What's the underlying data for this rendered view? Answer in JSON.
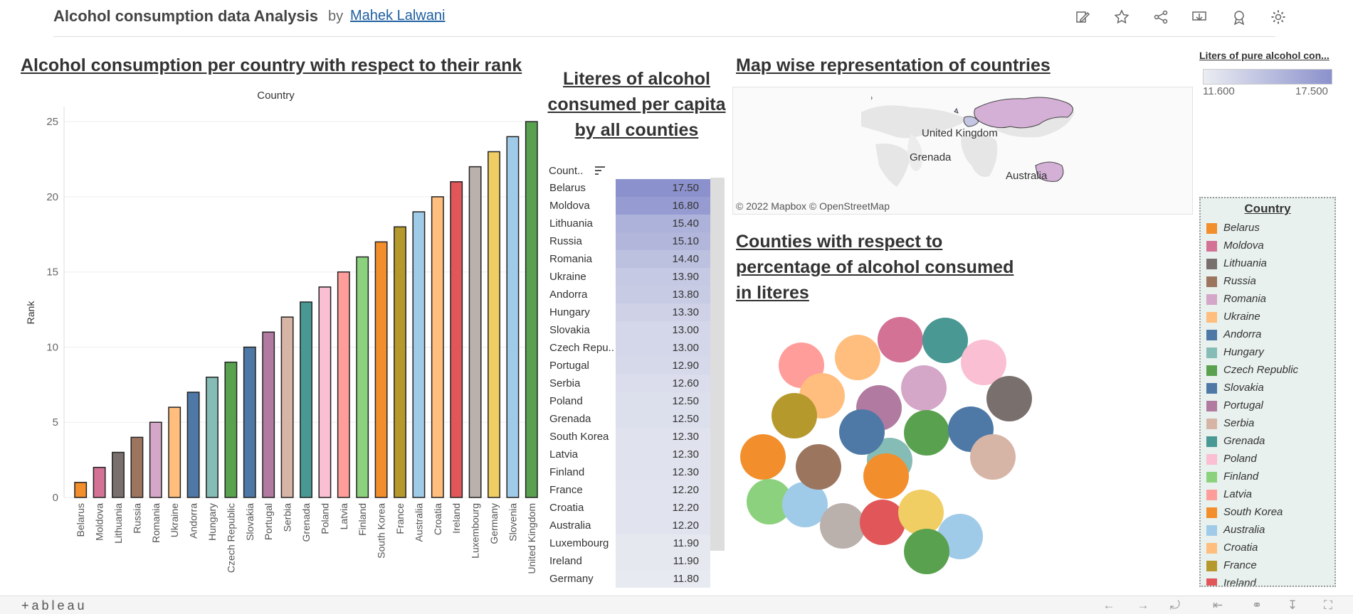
{
  "header": {
    "title": "Alcohol consumption data Analysis",
    "by": "by",
    "author": "Mahek Lalwani",
    "icons": [
      "edit-icon",
      "favorite-star-icon",
      "share-icon",
      "download-icon",
      "metrics-icon",
      "settings-gear-icon"
    ]
  },
  "bar_section": {
    "title": "Alcohol consumption per country with respect to their rank"
  },
  "table_section": {
    "title_lines": [
      "Literes of alcohol",
      "consumed per capita",
      "by all counties"
    ],
    "header": "Count..",
    "rows": [
      {
        "country": "Belarus",
        "value": "17.50"
      },
      {
        "country": "Moldova",
        "value": "16.80"
      },
      {
        "country": "Lithuania",
        "value": "15.40"
      },
      {
        "country": "Russia",
        "value": "15.10"
      },
      {
        "country": "Romania",
        "value": "14.40"
      },
      {
        "country": "Ukraine",
        "value": "13.90"
      },
      {
        "country": "Andorra",
        "value": "13.80"
      },
      {
        "country": "Hungary",
        "value": "13.30"
      },
      {
        "country": "Slovakia",
        "value": "13.00"
      },
      {
        "country": "Czech Repu..",
        "value": "13.00"
      },
      {
        "country": "Portugal",
        "value": "12.90"
      },
      {
        "country": "Serbia",
        "value": "12.60"
      },
      {
        "country": "Poland",
        "value": "12.50"
      },
      {
        "country": "Grenada",
        "value": "12.50"
      },
      {
        "country": "South Korea",
        "value": "12.30"
      },
      {
        "country": "Latvia",
        "value": "12.30"
      },
      {
        "country": "Finland",
        "value": "12.30"
      },
      {
        "country": "France",
        "value": "12.20"
      },
      {
        "country": "Croatia",
        "value": "12.20"
      },
      {
        "country": "Australia",
        "value": "12.20"
      },
      {
        "country": "Luxembourg",
        "value": "11.90"
      },
      {
        "country": "Ireland",
        "value": "11.90"
      },
      {
        "country": "Germany",
        "value": "11.80"
      }
    ]
  },
  "map_section": {
    "title": "Map wise representation of countries",
    "labels": [
      "United Kingdom",
      "Grenada",
      "Australia"
    ],
    "copyright": "© 2022 Mapbox  © OpenStreetMap"
  },
  "bubble_section": {
    "title_lines": [
      "Counties with respect to",
      "percentage of alcohol consumed",
      "in literes"
    ]
  },
  "color_legend": {
    "title": "Liters of pure alcohol con...",
    "min": "11.600",
    "max": "17.500",
    "colors": [
      "#ebedf2",
      "#8b91cc"
    ]
  },
  "country_legend": {
    "title": "Country",
    "items": [
      {
        "name": "Belarus",
        "color": "#f28e2b"
      },
      {
        "name": "Moldova",
        "color": "#d37295"
      },
      {
        "name": "Lithuania",
        "color": "#79706e"
      },
      {
        "name": "Russia",
        "color": "#9c755f"
      },
      {
        "name": "Romania",
        "color": "#d4a6c8"
      },
      {
        "name": "Ukraine",
        "color": "#ffbe7d"
      },
      {
        "name": "Andorra",
        "color": "#4e79a7"
      },
      {
        "name": "Hungary",
        "color": "#86bcb6"
      },
      {
        "name": "Czech Republic",
        "color": "#59a14f"
      },
      {
        "name": "Slovakia",
        "color": "#4e79a7"
      },
      {
        "name": "Portugal",
        "color": "#b07aa1"
      },
      {
        "name": "Serbia",
        "color": "#d7b5a6"
      },
      {
        "name": "Grenada",
        "color": "#499894"
      },
      {
        "name": "Poland",
        "color": "#fabfd2"
      },
      {
        "name": "Finland",
        "color": "#8cd17d"
      },
      {
        "name": "Latvia",
        "color": "#ff9d9a"
      },
      {
        "name": "South Korea",
        "color": "#f28e2b"
      },
      {
        "name": "Australia",
        "color": "#a0cbe8"
      },
      {
        "name": "Croatia",
        "color": "#ffbe7d"
      },
      {
        "name": "France",
        "color": "#b6992d"
      },
      {
        "name": "Ireland",
        "color": "#e15759"
      }
    ]
  },
  "chart_data": {
    "type": "bar",
    "title": "Country",
    "xlabel": "Country",
    "ylabel": "Rank",
    "ylim": [
      0,
      26
    ],
    "yticks": [
      0,
      5,
      10,
      15,
      20,
      25
    ],
    "grid": true,
    "categories": [
      "Belarus",
      "Moldova",
      "Lithuania",
      "Russia",
      "Romania",
      "Ukraine",
      "Andorra",
      "Hungary",
      "Czech Republic",
      "Slovakia",
      "Portugal",
      "Serbia",
      "Grenada",
      "Poland",
      "Latvia",
      "Finland",
      "South Korea",
      "France",
      "Australia",
      "Croatia",
      "Ireland",
      "Luxembourg",
      "Germany",
      "Slovenia",
      "United Kingdom"
    ],
    "values": [
      1,
      2,
      3,
      4,
      5,
      6,
      7,
      8,
      9,
      10,
      11,
      12,
      13,
      14,
      15,
      16,
      17,
      18,
      19,
      20,
      21,
      22,
      23,
      24,
      25
    ],
    "colors": [
      "#f28e2b",
      "#d37295",
      "#79706e",
      "#9c755f",
      "#d4a6c8",
      "#ffbe7d",
      "#4e79a7",
      "#86bcb6",
      "#59a14f",
      "#4e79a7",
      "#b07aa1",
      "#d7b5a6",
      "#499894",
      "#fabfd2",
      "#ff9d9a",
      "#8cd17d",
      "#f28e2b",
      "#b6992d",
      "#a0cbe8",
      "#ffbe7d",
      "#e15759",
      "#bab0ac",
      "#f1ce63",
      "#a0cbe8",
      "#59a14f"
    ]
  },
  "footer": {
    "logo": "+ableau",
    "icons": [
      "undo-icon",
      "redo-icon",
      "revert-icon",
      "revert-all-icon",
      "share-icon",
      "download-icon",
      "fullscreen-icon"
    ]
  }
}
